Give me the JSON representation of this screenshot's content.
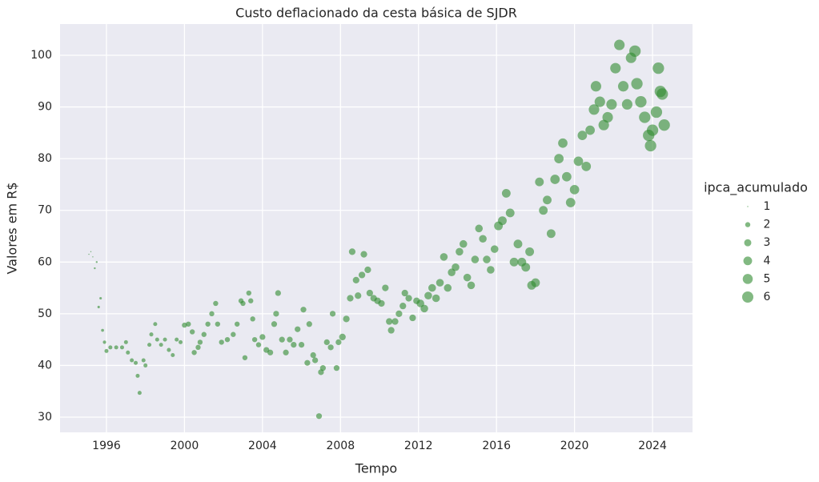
{
  "chart_data": {
    "type": "scatter",
    "title": "Custo deflacionado da cesta básica de SJDR",
    "x_label": "Tempo",
    "y_label": "Valores em R$",
    "xlim": [
      1993.62,
      2026.05
    ],
    "ylim": [
      27.06,
      106.04
    ],
    "xticks": [
      1996,
      2000,
      2004,
      2008,
      2012,
      2016,
      2020,
      2024
    ],
    "yticks": [
      30,
      40,
      50,
      60,
      70,
      80,
      90,
      100
    ],
    "grid": true,
    "color": "#2e8b2e",
    "legend_title": "ipca_acumulado",
    "legend_sizes": [
      1,
      2,
      3,
      4,
      5,
      6
    ],
    "legend_position": "right",
    "x": [
      1995.1,
      1995.2,
      1995.3,
      1995.4,
      1995.5,
      1995.6,
      1995.7,
      1995.8,
      1995.9,
      1996.0,
      1996.2,
      1996.5,
      1996.8,
      1997.0,
      1997.1,
      1997.3,
      1997.5,
      1997.6,
      1997.7,
      1997.9,
      1998.0,
      1998.2,
      1998.3,
      1998.5,
      1998.6,
      1998.8,
      1999.0,
      1999.2,
      1999.4,
      1999.6,
      1999.8,
      2000.0,
      2000.2,
      2000.4,
      2000.5,
      2000.7,
      2000.8,
      2001.0,
      2001.2,
      2001.4,
      2001.6,
      2001.7,
      2001.9,
      2002.2,
      2002.5,
      2002.7,
      2002.9,
      2003.0,
      2003.1,
      2003.3,
      2003.4,
      2003.5,
      2003.6,
      2003.8,
      2004.0,
      2004.2,
      2004.4,
      2004.6,
      2004.7,
      2004.8,
      2005.0,
      2005.2,
      2005.4,
      2005.6,
      2005.8,
      2006.0,
      2006.1,
      2006.3,
      2006.4,
      2006.6,
      2006.7,
      2006.9,
      2007.0,
      2007.1,
      2007.3,
      2007.5,
      2007.6,
      2007.8,
      2007.9,
      2008.1,
      2008.3,
      2008.5,
      2008.6,
      2008.8,
      2008.9,
      2009.1,
      2009.2,
      2009.4,
      2009.5,
      2009.7,
      2009.9,
      2010.1,
      2010.3,
      2010.5,
      2010.6,
      2010.8,
      2011.0,
      2011.2,
      2011.3,
      2011.5,
      2011.7,
      2011.9,
      2012.1,
      2012.3,
      2012.5,
      2012.7,
      2012.9,
      2013.1,
      2013.3,
      2013.5,
      2013.7,
      2013.9,
      2014.1,
      2014.3,
      2014.5,
      2014.7,
      2014.9,
      2015.1,
      2015.3,
      2015.5,
      2015.7,
      2015.9,
      2016.1,
      2016.3,
      2016.5,
      2016.7,
      2016.9,
      2017.1,
      2017.3,
      2017.5,
      2017.7,
      2017.8,
      2018.0,
      2018.2,
      2018.4,
      2018.6,
      2018.8,
      2019.0,
      2019.2,
      2019.4,
      2019.6,
      2019.8,
      2020.0,
      2020.2,
      2020.4,
      2020.6,
      2020.8,
      2021.0,
      2021.1,
      2021.3,
      2021.5,
      2021.7,
      2021.9,
      2022.1,
      2022.3,
      2022.5,
      2022.7,
      2022.9,
      2023.1,
      2023.2,
      2023.4,
      2023.6,
      2023.8,
      2023.9,
      2024.0,
      2024.2,
      2024.3,
      2024.4,
      2024.5,
      2024.6
    ],
    "values": [
      61.5,
      62,
      61,
      58.8,
      60,
      51.3,
      53,
      46.8,
      44.5,
      42.8,
      43.5,
      43.5,
      43.5,
      44.5,
      42.5,
      41,
      40.5,
      38,
      34.7,
      41,
      40,
      44,
      46,
      48,
      45,
      44,
      45,
      43,
      42,
      45,
      44.5,
      47.8,
      48,
      46.5,
      42.5,
      43.5,
      44.5,
      46,
      48,
      50,
      52,
      48,
      44.5,
      45,
      46,
      48,
      52.5,
      52,
      41.5,
      54,
      52.5,
      49,
      45,
      44,
      45.5,
      43,
      42.5,
      48,
      50,
      54,
      45,
      42.5,
      45,
      44,
      47,
      44,
      50.8,
      40.5,
      48,
      42,
      41,
      30.2,
      38.7,
      39.5,
      44.5,
      43.5,
      50,
      39.5,
      44.5,
      45.5,
      49,
      53,
      62,
      56.5,
      53.5,
      57.5,
      61.5,
      58.5,
      54,
      53,
      52.5,
      52,
      55,
      48.5,
      46.8,
      48.5,
      50,
      51.5,
      54,
      53,
      49.2,
      52.5,
      52,
      51,
      53.5,
      55,
      53,
      56,
      61,
      55,
      58,
      59,
      62,
      63.5,
      57,
      55.5,
      60.5,
      66.5,
      64.5,
      60.5,
      58.5,
      62.5,
      67,
      68,
      73.3,
      69.5,
      60,
      63.5,
      60,
      59,
      62,
      55.5,
      56,
      75.5,
      70,
      72,
      65.5,
      76,
      80,
      83,
      76.5,
      71.5,
      74,
      79.5,
      84.5,
      78.5,
      85.5,
      89.5,
      94,
      91,
      86.5,
      88,
      90.5,
      97.5,
      102,
      94,
      90.5,
      99.5,
      100.8,
      94.5,
      91,
      88,
      84.5,
      82.5,
      85.5,
      89,
      97.5,
      93,
      92.5,
      86.5
    ],
    "sizes": [
      1.0,
      1.0,
      1.0,
      1.1,
      1.1,
      1.2,
      1.2,
      1.3,
      1.4,
      1.6,
      1.6,
      1.6,
      1.6,
      1.6,
      1.6,
      1.6,
      1.6,
      1.6,
      1.6,
      1.6,
      1.6,
      1.6,
      1.6,
      1.6,
      1.6,
      1.6,
      1.6,
      1.6,
      1.6,
      1.6,
      1.6,
      2.0,
      2.0,
      2.0,
      2.0,
      2.0,
      2.0,
      2.0,
      2.0,
      2.0,
      2.0,
      2.0,
      2.0,
      2.0,
      2.0,
      2.0,
      2.0,
      2.0,
      2.0,
      2.0,
      2.0,
      2.0,
      2.0,
      2.0,
      2.3,
      2.3,
      2.3,
      2.3,
      2.3,
      2.3,
      2.3,
      2.3,
      2.3,
      2.3,
      2.3,
      2.3,
      2.3,
      2.3,
      2.3,
      2.3,
      2.3,
      2.3,
      2.3,
      2.3,
      2.3,
      2.3,
      2.3,
      2.3,
      2.3,
      2.7,
      2.7,
      2.7,
      2.7,
      2.7,
      2.7,
      2.7,
      2.7,
      2.7,
      2.7,
      2.7,
      2.7,
      2.7,
      2.7,
      2.7,
      2.7,
      2.7,
      2.7,
      2.7,
      2.7,
      2.7,
      2.7,
      2.7,
      3.3,
      3.3,
      3.3,
      3.3,
      3.3,
      3.3,
      3.3,
      3.3,
      3.3,
      3.3,
      3.3,
      3.3,
      3.3,
      3.3,
      3.3,
      3.3,
      3.3,
      3.3,
      3.3,
      3.3,
      4.0,
      4.0,
      4.0,
      4.0,
      4.0,
      4.0,
      4.0,
      4.0,
      4.0,
      4.0,
      4.0,
      4.0,
      4.0,
      4.0,
      4.0,
      4.5,
      4.5,
      4.5,
      4.5,
      4.5,
      4.5,
      4.5,
      4.5,
      4.5,
      4.5,
      5.4,
      5.4,
      5.4,
      5.4,
      5.4,
      5.4,
      5.4,
      5.4,
      5.4,
      5.4,
      5.4,
      6.2,
      6.2,
      6.2,
      6.2,
      6.2,
      6.2,
      6.2,
      6.2,
      6.2,
      6.2,
      6.2,
      6.2
    ]
  }
}
